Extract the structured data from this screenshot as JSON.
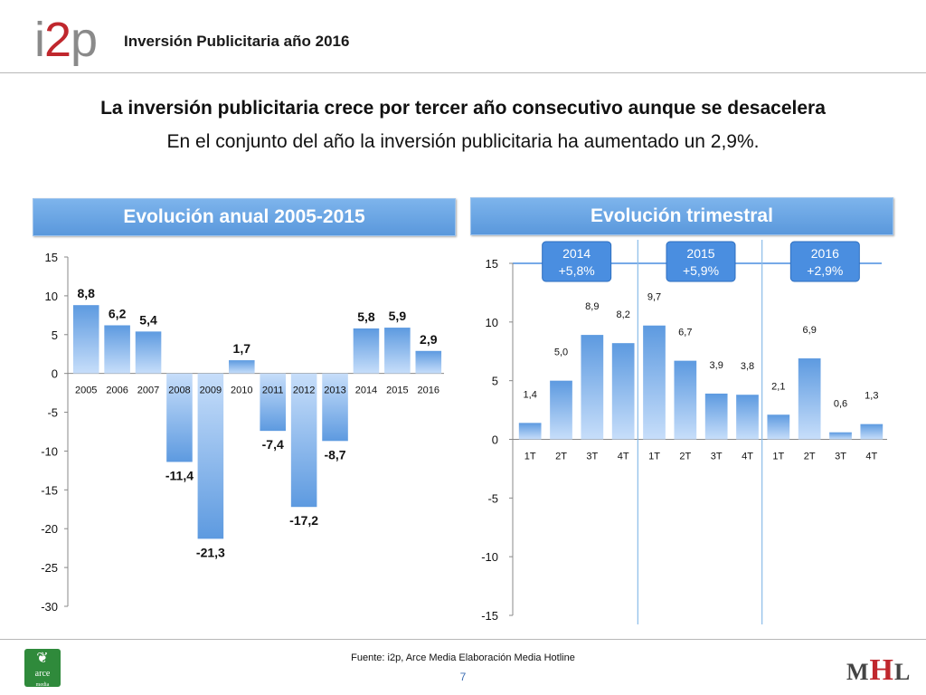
{
  "header": {
    "logo_text_left": "i",
    "logo_text_mid": "2",
    "logo_text_right": "p",
    "title": "Inversión Publicitaria año 2016"
  },
  "headline": "La inversión publicitaria crece por tercer año consecutivo aunque se desacelera",
  "subline": "En el conjunto del año la inversión publicitaria ha aumentado un 2,9%.",
  "colors": {
    "bar": "#5d9ae0",
    "bar_light": "#c7defa",
    "panel": "#6aa6e6",
    "badge": "#4a8ee0",
    "year_line": "#8bbbe8"
  },
  "chart_data": [
    {
      "type": "bar",
      "title": "Evolución anual 2005-2015",
      "categories": [
        "2005",
        "2006",
        "2007",
        "2008",
        "2009",
        "2010",
        "2011",
        "2012",
        "2013",
        "2014",
        "2015",
        "2016"
      ],
      "values": [
        8.8,
        6.2,
        5.4,
        -11.4,
        -21.3,
        1.7,
        -7.4,
        -17.2,
        -8.7,
        5.8,
        5.9,
        2.9
      ],
      "labels": [
        "8,8",
        "6,2",
        "5,4",
        "-11,4",
        "-21,3",
        "1,7",
        "-7,4",
        "-17,2",
        "-8,7",
        "5,8",
        "5,9",
        "2,9"
      ],
      "ylim": [
        -30,
        15
      ],
      "yticks": [
        "15",
        "10",
        "5",
        "0",
        "-5",
        "-10",
        "-15",
        "-20",
        "-25",
        "-30"
      ],
      "ytick_values": [
        15,
        10,
        5,
        0,
        -5,
        -10,
        -15,
        -20,
        -25,
        -30
      ]
    },
    {
      "type": "bar",
      "title": "Evolución trimestral",
      "categories": [
        "1T",
        "2T",
        "3T",
        "4T",
        "1T",
        "2T",
        "3T",
        "4T",
        "1T",
        "2T",
        "3T",
        "4T"
      ],
      "values": [
        1.4,
        5.0,
        8.9,
        8.2,
        9.7,
        6.7,
        3.9,
        3.8,
        2.1,
        6.9,
        0.6,
        1.3
      ],
      "labels": [
        "1,4",
        "5,0",
        "8,9",
        "8,2",
        "9,7",
        "6,7",
        "3,9",
        "3,8",
        "2,1",
        "6,9",
        "0,6",
        "1,3"
      ],
      "ylim": [
        -15,
        15
      ],
      "yticks": [
        "15",
        "10",
        "5",
        "0",
        "-5",
        "-10",
        "-15"
      ],
      "ytick_values": [
        15,
        10,
        5,
        0,
        -5,
        -10,
        -15
      ],
      "annotations": [
        {
          "year": "2014",
          "change": "+5,8%"
        },
        {
          "year": "2015",
          "change": "+5,9%"
        },
        {
          "year": "2016",
          "change": "+2,9%"
        }
      ]
    }
  ],
  "footer": {
    "source": "Fuente: i2p, Arce Media Elaboración Media Hotline",
    "page": "7",
    "arce_logo_text": "arce",
    "arce_logo_sub": "media",
    "mhl_m": "M",
    "mhl_h": "H",
    "mhl_l": "L"
  }
}
